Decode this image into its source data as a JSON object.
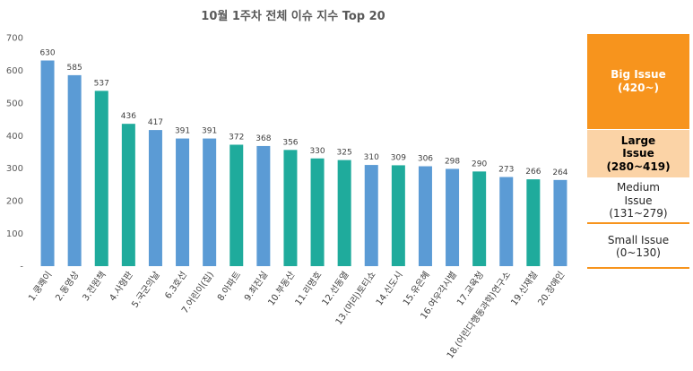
{
  "chart_data": {
    "type": "bar",
    "title": "10월 1주차 전체 이슈 지수 Top 20",
    "xlabel": "",
    "ylabel": "",
    "ylim": [
      0,
      700
    ],
    "yticks": [
      "-",
      "100",
      "200",
      "300",
      "400",
      "500",
      "600",
      "700"
    ],
    "grid": false,
    "colors": {
      "blue": "#5B9BD5",
      "teal": "#1FAB9C"
    },
    "categories": [
      "1.쿵쾌이",
      "2.동영상",
      "3.전원책",
      "4.사형판",
      "5.국군의날",
      "6.3호선",
      "7.어린이(집)",
      "8.아파트",
      "9.최진실",
      "10.부동산",
      "11.리명호",
      "12.선동열",
      "13.(머리)토티쇼",
      "14.신도시",
      "15.유은혜",
      "16.여우각시별",
      "17.교육청",
      "18.(어린다행동과학)연구소",
      "19.신재철",
      "20.장애인"
    ],
    "values": [
      630,
      585,
      537,
      436,
      417,
      391,
      391,
      372,
      368,
      356,
      330,
      325,
      310,
      309,
      306,
      298,
      290,
      273,
      266,
      264
    ],
    "bar_colors": [
      "blue",
      "blue",
      "teal",
      "teal",
      "blue",
      "blue",
      "blue",
      "teal",
      "blue",
      "teal",
      "teal",
      "teal",
      "blue",
      "teal",
      "blue",
      "blue",
      "teal",
      "blue",
      "teal",
      "blue"
    ]
  },
  "legend": {
    "big": {
      "title": "Big Issue",
      "range": "(420~)"
    },
    "large": {
      "title_line1": "Large",
      "title_line2": "Issue",
      "range": "(280~419)"
    },
    "medium": {
      "title_line1": "Medium",
      "title_line2": "Issue",
      "range": "(131~279)"
    },
    "small": {
      "title": "Small Issue",
      "range": "(0~130)"
    }
  }
}
